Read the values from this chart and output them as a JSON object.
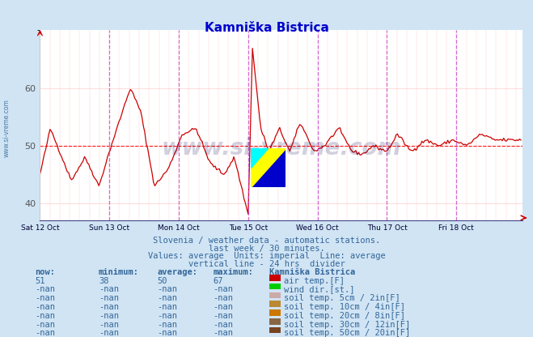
{
  "title": "Kamniška Bistrica",
  "title_color": "#0000cc",
  "bg_color": "#d0e4f4",
  "plot_bg_color": "#ffffff",
  "grid_color_major": "#ffcccc",
  "ylim": [
    37,
    70
  ],
  "yticks": [
    40,
    50,
    60
  ],
  "line_color": "#cc0000",
  "average_line_y": 50,
  "average_line_color": "#ff0000",
  "vline_color": "#cc44cc",
  "x_tick_labels": [
    "Sat 12 Oct",
    "Sun 13 Oct",
    "Mon 14 Oct",
    "Tue 15 Oct",
    "Wed 16 Oct",
    "Thu 17 Oct",
    "Fri 18 Oct"
  ],
  "subtitle1": "Slovenia / weather data - automatic stations.",
  "subtitle2": "last week / 30 minutes.",
  "subtitle3": "Values: average  Units: imperial  Line: average",
  "subtitle4": "vertical line - 24 hrs  divider",
  "subtitle_color": "#336699",
  "table_header_color": "#336699",
  "table_value_color": "#336699",
  "table_rows": [
    [
      "51",
      "38",
      "50",
      "67",
      "#cc0000",
      "air temp.[F]"
    ],
    [
      "-nan",
      "-nan",
      "-nan",
      "-nan",
      "#00cc00",
      "wind dir.[st.]"
    ],
    [
      "-nan",
      "-nan",
      "-nan",
      "-nan",
      "#ccaaaa",
      "soil temp. 5cm / 2in[F]"
    ],
    [
      "-nan",
      "-nan",
      "-nan",
      "-nan",
      "#bb8833",
      "soil temp. 10cm / 4in[F]"
    ],
    [
      "-nan",
      "-nan",
      "-nan",
      "-nan",
      "#cc7700",
      "soil temp. 20cm / 8in[F]"
    ],
    [
      "-nan",
      "-nan",
      "-nan",
      "-nan",
      "#886644",
      "soil temp. 30cm / 12in[F]"
    ],
    [
      "-nan",
      "-nan",
      "-nan",
      "-nan",
      "#774422",
      "soil temp. 50cm / 20in[F]"
    ]
  ]
}
